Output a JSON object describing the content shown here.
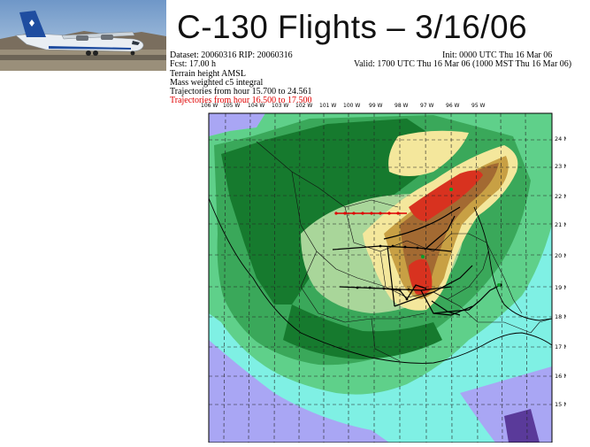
{
  "slide": {
    "title": "C-130 Flights – 3/16/06"
  },
  "header": {
    "dataset": "Dataset: 20060316   RIP: 20060316",
    "init": "Init: 0000 UTC Thu 16 Mar 06",
    "fcst": "Fcst:   17.00 h",
    "valid": "Valid: 1700 UTC Thu 16 Mar 06 (1000 MST Thu 16 Mar 06)",
    "line3": "Terrain height AMSL",
    "line4": "Mass weighted c5 integral",
    "line5": "Trajectories from hour  15.700 to  24.561",
    "line6": "Trajectories from hour  16.500 to  17.500"
  },
  "map": {
    "lon_labels": [
      "106 W",
      "105 W",
      "104 W",
      "103 W",
      "102 W",
      "101 W",
      "100 W",
      "99 W",
      "98 W",
      "97 W",
      "96 W",
      "95 W"
    ],
    "lat_labels": [
      "24 N",
      "23 N",
      "22 N",
      "21 N",
      "20 N",
      "19 N",
      "18 N",
      "17 N",
      "16 N",
      "15 N"
    ],
    "colors": {
      "ocean": "#7ff0e4",
      "lowland": "#5fd08a",
      "green": "#3aa85a",
      "darkgreen": "#167a2e",
      "sage": "#a9d69a",
      "cream": "#f4e79c",
      "tan": "#c8a044",
      "brown": "#a36a32",
      "red": "#d8321f",
      "lavender": "#a9a6f4",
      "purple": "#5a3a9a"
    }
  }
}
